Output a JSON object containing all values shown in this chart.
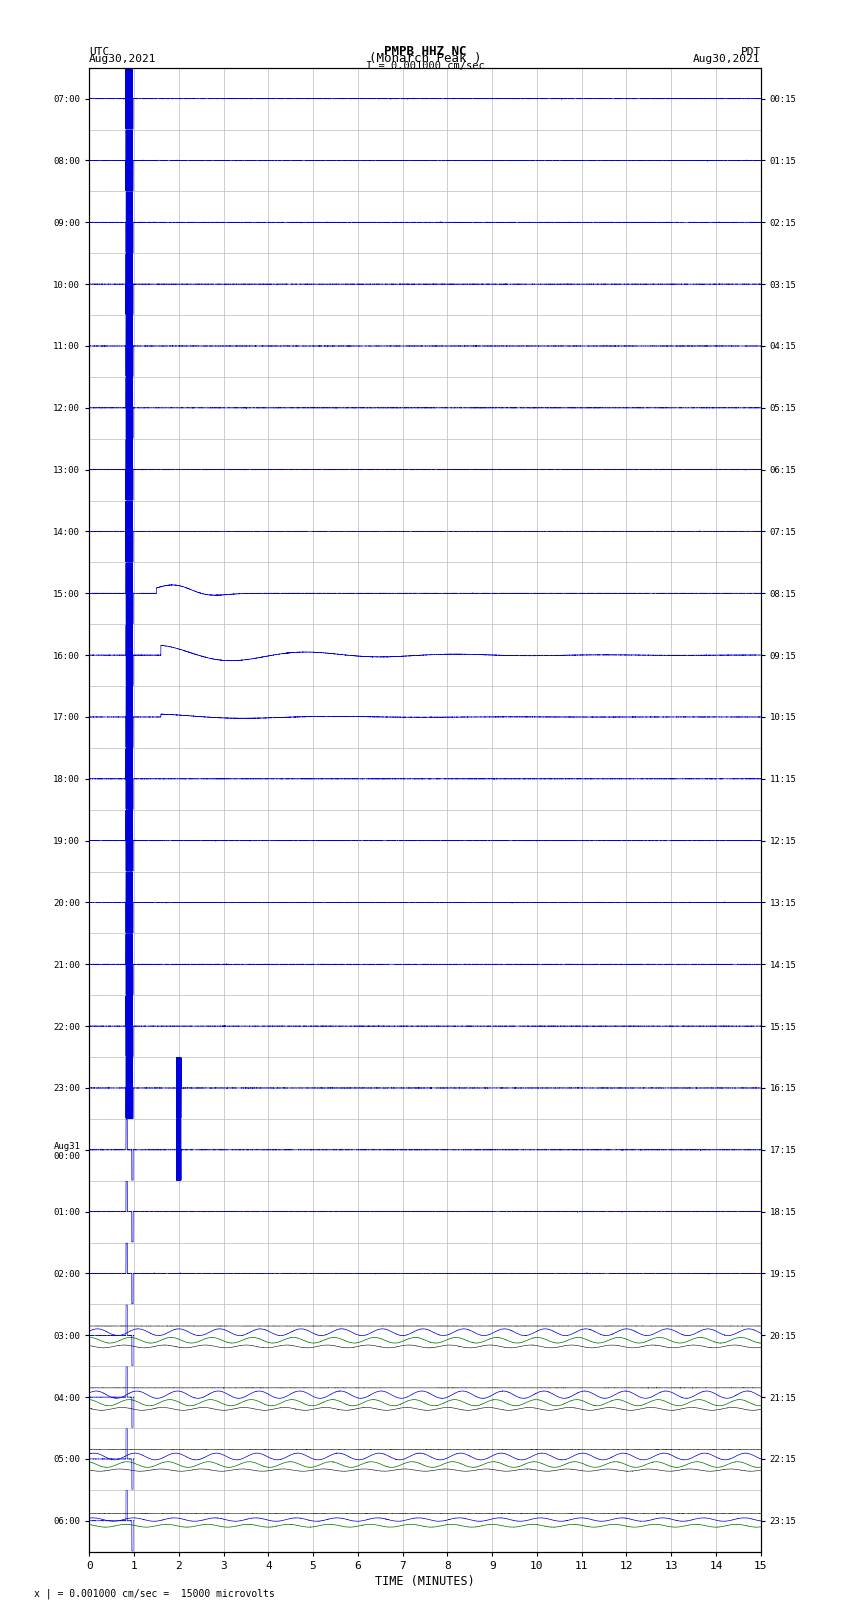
{
  "title_line1": "PMPB HHZ NC",
  "title_line2": "(Monarch Peak )",
  "scale_label": "I = 0.001000 cm/sec",
  "bottom_label": "x | = 0.001000 cm/sec =  15000 microvolts",
  "xlabel": "TIME (MINUTES)",
  "left_header1": "UTC",
  "left_header2": "Aug30,2021",
  "right_header1": "PDT",
  "right_header2": "Aug30,2021",
  "left_ytick_labels": [
    "07:00",
    "08:00",
    "09:00",
    "10:00",
    "11:00",
    "12:00",
    "13:00",
    "14:00",
    "15:00",
    "16:00",
    "17:00",
    "18:00",
    "19:00",
    "20:00",
    "21:00",
    "22:00",
    "23:00",
    "Aug31\n00:00",
    "01:00",
    "02:00",
    "03:00",
    "04:00",
    "05:00",
    "06:00"
  ],
  "right_ytick_labels": [
    "00:15",
    "01:15",
    "02:15",
    "03:15",
    "04:15",
    "05:15",
    "06:15",
    "07:15",
    "08:15",
    "09:15",
    "10:15",
    "11:15",
    "12:15",
    "13:15",
    "14:15",
    "15:15",
    "16:15",
    "17:15",
    "18:15",
    "19:15",
    "20:15",
    "21:15",
    "22:15",
    "23:15"
  ],
  "n_rows": 24,
  "xlim": [
    0,
    15
  ],
  "bg_color": "#ffffff",
  "grid_color": "#bbbbbb",
  "blue": "#0000dd",
  "green": "#007700",
  "black": "#111111",
  "red": "#cc0000",
  "darkblue": "#000077"
}
